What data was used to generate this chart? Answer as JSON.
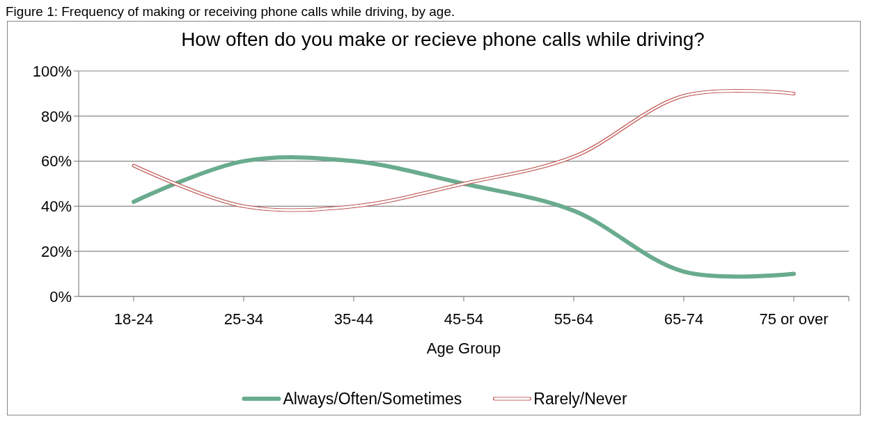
{
  "chart_data": {
    "type": "line",
    "title": "How often do you make or recieve phone calls while driving?",
    "annotations": [
      "Figure 1: Frequency of making or receiving phone calls while driving, by age."
    ],
    "xlabel": "Age Group",
    "categories": [
      "18-24",
      "25-34",
      "35-44",
      "45-54",
      "55-64",
      "65-74",
      "75 or over"
    ],
    "series": [
      {
        "name": "Always/Often/Sometimes",
        "color": "#6aab8e",
        "values": [
          42,
          60,
          60,
          50,
          38,
          11,
          10
        ]
      },
      {
        "name": "Rarely/Never",
        "color": "#c0504d",
        "values": [
          58,
          40,
          40,
          50,
          62,
          89,
          90
        ]
      }
    ],
    "ylim": [
      0,
      100
    ],
    "yticks": [
      {
        "value": 0,
        "label": "0%"
      },
      {
        "value": 20,
        "label": "20%"
      },
      {
        "value": 40,
        "label": "40%"
      },
      {
        "value": 60,
        "label": "60%"
      },
      {
        "value": 80,
        "label": "80%"
      },
      {
        "value": 100,
        "label": "100%"
      }
    ],
    "grid": "y",
    "legend": "bottom"
  }
}
